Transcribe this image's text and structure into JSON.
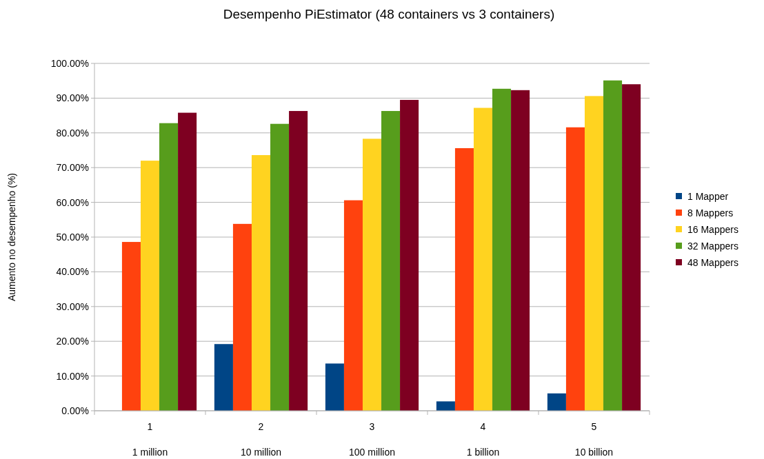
{
  "chart_data": {
    "type": "bar",
    "title": "Desempenho PiEstimator (48 containers vs 3 containers)",
    "ylabel": "Aumento no desempenho (%)",
    "categories": [
      "1\n1 million",
      "2\n10 million",
      "3\n100 million",
      "4\n1 billion",
      "5\n10 billion"
    ],
    "series": [
      {
        "name": "1 Mapper",
        "color": "#004586",
        "values": [
          0,
          19.2,
          13.6,
          2.7,
          5.0
        ]
      },
      {
        "name": "8 Mappers",
        "color": "#ff420e",
        "values": [
          48.6,
          53.8,
          60.6,
          75.6,
          81.6
        ]
      },
      {
        "name": "16 Mappers",
        "color": "#ffd320",
        "values": [
          72.0,
          73.6,
          78.3,
          87.2,
          90.6
        ]
      },
      {
        "name": "32 Mappers",
        "color": "#579d1c",
        "values": [
          82.8,
          82.6,
          86.3,
          92.7,
          95.1
        ]
      },
      {
        "name": "48 Mappers",
        "color": "#7e0021",
        "values": [
          85.8,
          86.3,
          89.5,
          92.3,
          94.0
        ]
      }
    ],
    "ylim": [
      0,
      100
    ],
    "yticks": [
      {
        "value": 0,
        "label": "0.00%"
      },
      {
        "value": 10,
        "label": "10.00%"
      },
      {
        "value": 20,
        "label": "20.00%"
      },
      {
        "value": 30,
        "label": "30.00%"
      },
      {
        "value": 40,
        "label": "40.00%"
      },
      {
        "value": 50,
        "label": "50.00%"
      },
      {
        "value": 60,
        "label": "60.00%"
      },
      {
        "value": 70,
        "label": "70.00%"
      },
      {
        "value": 80,
        "label": "80.00%"
      },
      {
        "value": 90,
        "label": "90.00%"
      },
      {
        "value": 100,
        "label": "100.00%"
      }
    ],
    "grid": "y",
    "legend": "right"
  }
}
